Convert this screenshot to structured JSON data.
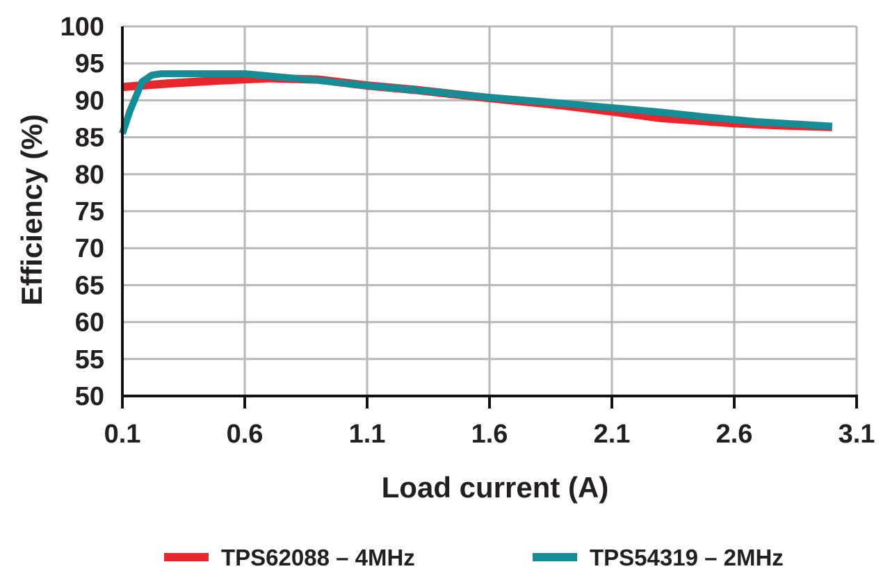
{
  "chart_data": {
    "type": "line",
    "title": "",
    "xlabel": "Load current (A)",
    "ylabel": "Efficiency (%)",
    "xlim": [
      0.1,
      3.1
    ],
    "ylim": [
      50,
      100
    ],
    "x_ticks": [
      0.1,
      0.6,
      1.1,
      1.6,
      2.1,
      2.6,
      3.1
    ],
    "x_tick_labels": [
      "0.1",
      "0.6",
      "1.1",
      "1.6",
      "2.1",
      "2.6",
      "3.1"
    ],
    "y_ticks": [
      50,
      55,
      60,
      65,
      70,
      75,
      80,
      85,
      90,
      95,
      100
    ],
    "y_tick_labels": [
      "50",
      "55",
      "60",
      "65",
      "70",
      "75",
      "80",
      "85",
      "90",
      "95",
      "100"
    ],
    "grid": true,
    "legend_position": "bottom",
    "series": [
      {
        "name": "TPS62088 – 4MHz",
        "color": "#e8262d",
        "points": [
          [
            0.1,
            91.8
          ],
          [
            0.3,
            92.3
          ],
          [
            0.5,
            92.7
          ],
          [
            0.7,
            93.0
          ],
          [
            0.9,
            92.8
          ],
          [
            1.1,
            92.0
          ],
          [
            1.3,
            91.4
          ],
          [
            1.6,
            90.3
          ],
          [
            1.9,
            89.3
          ],
          [
            2.1,
            88.5
          ],
          [
            2.3,
            87.6
          ],
          [
            2.6,
            86.9
          ],
          [
            2.8,
            86.6
          ],
          [
            3.0,
            86.4
          ]
        ]
      },
      {
        "name": "TPS54319 – 2MHz",
        "color": "#158d96",
        "points": [
          [
            0.1,
            85.5
          ],
          [
            0.13,
            88.5
          ],
          [
            0.18,
            92.5
          ],
          [
            0.22,
            93.4
          ],
          [
            0.26,
            93.6
          ],
          [
            0.4,
            93.6
          ],
          [
            0.6,
            93.6
          ],
          [
            0.7,
            93.3
          ],
          [
            0.9,
            92.7
          ],
          [
            1.1,
            92.0
          ],
          [
            1.3,
            91.4
          ],
          [
            1.6,
            90.4
          ],
          [
            1.9,
            89.6
          ],
          [
            2.1,
            89.0
          ],
          [
            2.3,
            88.4
          ],
          [
            2.5,
            87.7
          ],
          [
            2.7,
            87.1
          ],
          [
            2.9,
            86.7
          ],
          [
            3.0,
            86.5
          ]
        ]
      }
    ]
  }
}
